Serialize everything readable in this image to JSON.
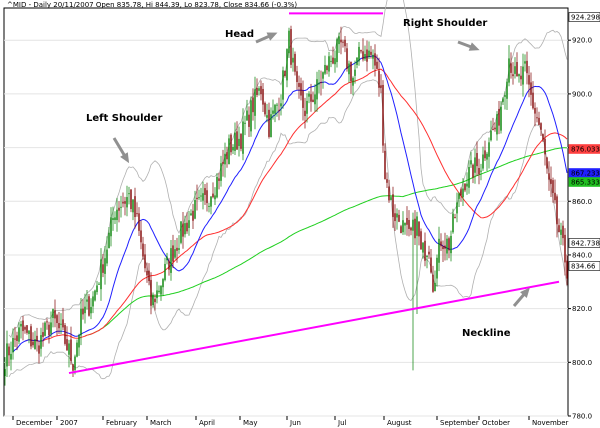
{
  "chart_data": {
    "type": "candlestick",
    "title": "^MID - Daily 20/11/2007 Open 835.78, Hi 844.39, Lo 823.78, Close 834.66 (-0.3%)",
    "ylim": [
      780,
      932
    ],
    "y_ticks": [
      780,
      800,
      820,
      840,
      860,
      880,
      900,
      920
    ],
    "y_tick_labels": [
      "780.0",
      "800.0",
      "820.0",
      "840.0",
      "860.0",
      "880.0",
      "900.0",
      "920.0"
    ],
    "x_labels": [
      "December",
      "2007",
      "February",
      "March",
      "April",
      "May",
      "Jun",
      "Jul",
      "August",
      "September",
      "October",
      "November"
    ],
    "price_tags": [
      {
        "value": 924.298,
        "label": "924.298",
        "color": "#ffffff"
      },
      {
        "value": 876.033,
        "label": "876.033",
        "color": "#ff4040"
      },
      {
        "value": 867.233,
        "label": "867.233",
        "color": "#2020ff"
      },
      {
        "value": 865.333,
        "label": "865.333",
        "color": "#20c020"
      },
      {
        "value": 842.738,
        "label": "842.738",
        "color": "#ffffff"
      },
      {
        "value": 834.66,
        "label": "834.66",
        "color": "#ffffff"
      }
    ],
    "annotations": [
      {
        "text": "Head",
        "x_index": 117,
        "y": 916
      },
      {
        "text": "Left Shoulder",
        "x_index": 40,
        "y": 886
      },
      {
        "text": "Right Shoulder",
        "x_index": 205,
        "y": 922
      },
      {
        "text": "Neckline",
        "x_index": 231,
        "y": 813
      }
    ],
    "neckline": {
      "start_index": 32,
      "start_value": 796,
      "end_index": 277,
      "end_value": 830
    },
    "top_line": {
      "start_index": 142,
      "end_index": 189,
      "value": 930
    },
    "colors": {
      "up": "#008000",
      "down": "#800000",
      "ma_short": "#2020ff",
      "ma_mid": "#ff3030",
      "ma_long": "#20d020",
      "bands": "#b0b0b0",
      "neckline": "#ff00ff",
      "arrow": "#909090"
    }
  }
}
